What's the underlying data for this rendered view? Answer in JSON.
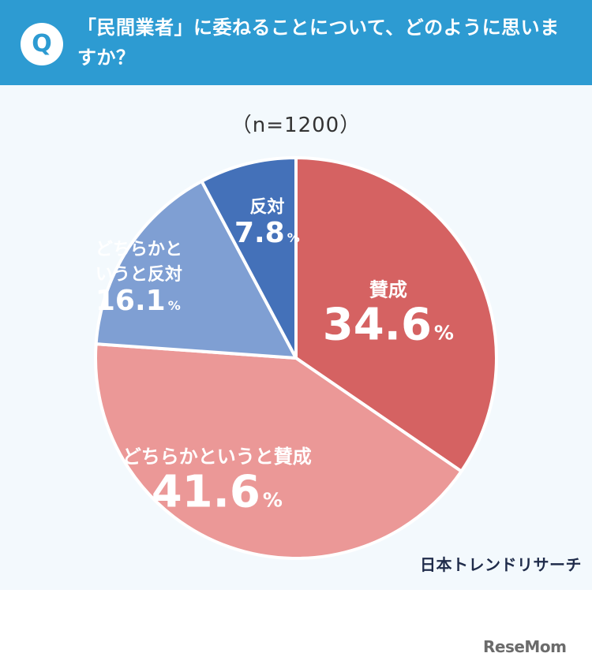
{
  "question": "「民間業者」に委ねることについて、どのように思いますか？",
  "badge": "Q",
  "sample_size": "（n=1200）",
  "source": "日本トレンドリサーチ",
  "brand": "ReseMom",
  "chart_data": {
    "type": "pie",
    "categories": [
      "賛成",
      "どちらかというと賛成",
      "どちらかというと反対",
      "反対"
    ],
    "values": [
      34.6,
      41.6,
      16.1,
      7.8
    ],
    "unit": "%",
    "colors": [
      "#d56262",
      "#eb9897",
      "#7f9fd3",
      "#4471b9"
    ],
    "label_lines": [
      [
        "賛成"
      ],
      [
        "どちらかというと賛成"
      ],
      [
        "どちらかと",
        "いうと反対"
      ],
      [
        "反対"
      ]
    ]
  }
}
